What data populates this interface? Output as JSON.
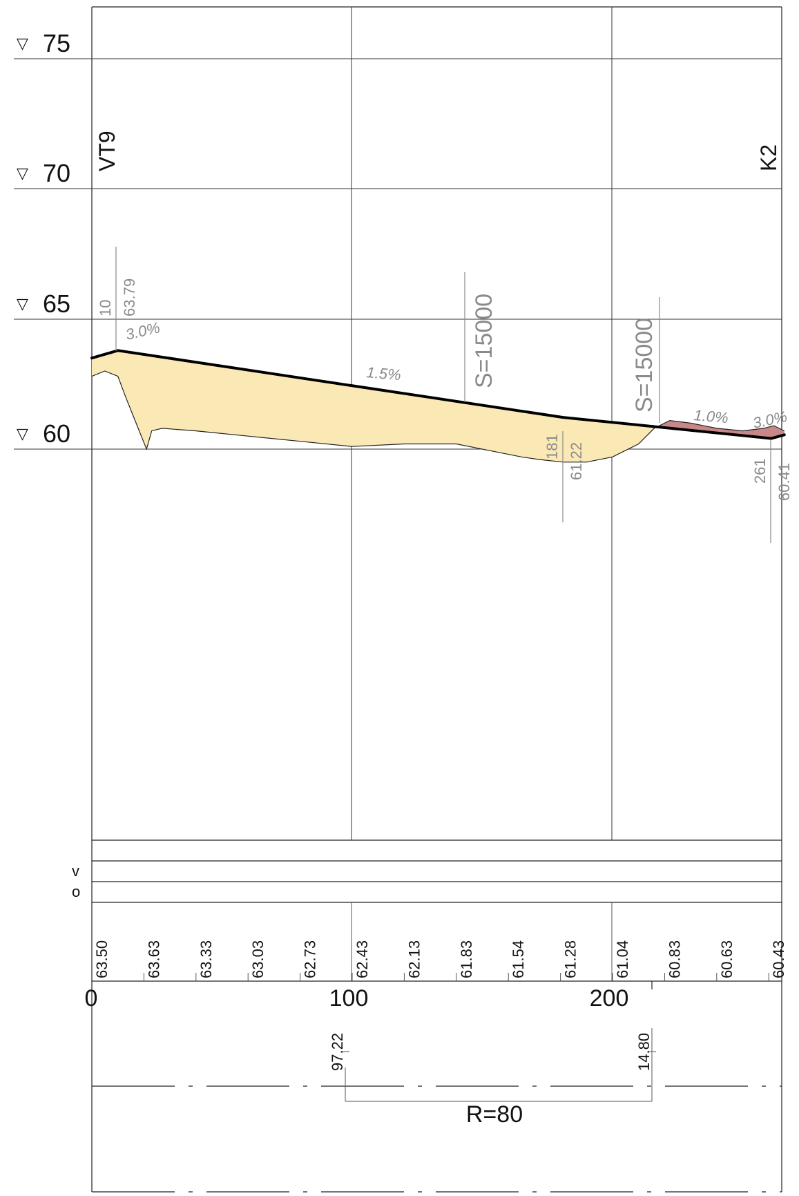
{
  "elevation_labels": [
    "75",
    "70",
    "65",
    "60"
  ],
  "elevation_marker_symbol": "▽",
  "stations": {
    "start": "0",
    "s100": "100",
    "s200": "200"
  },
  "point_labels": {
    "start": "VT9",
    "end": "K2"
  },
  "vertical_points": [
    {
      "station": "10",
      "elevation": "63.79"
    },
    {
      "station": "181",
      "elevation": "61.22"
    },
    {
      "station": "261",
      "elevation": "60.41"
    }
  ],
  "grade_labels": [
    "3.0%",
    "1.5%",
    "1.0%",
    "3.0%"
  ],
  "vertical_curves": [
    "S=15000",
    "S=15000"
  ],
  "table_row_labels": {
    "v": "v",
    "o": "o"
  },
  "grade_elevations": [
    "63.50",
    "63.63",
    "63.33",
    "63.03",
    "62.73",
    "62.43",
    "62.13",
    "61.83",
    "61.54",
    "61.28",
    "61.04",
    "60.83",
    "60.63",
    "60.43"
  ],
  "horizontal_curve": {
    "radius_label": "R=80",
    "start_value": "97.22",
    "end_value": "14.80"
  },
  "colors": {
    "cut_fill": "#fbe9b5",
    "fill_fill": "#c98888",
    "grade_line": "#000000",
    "annotation_grey": "#8a8a8a"
  },
  "chart_data": {
    "type": "line",
    "title": "",
    "xlabel": "",
    "ylabel": "",
    "xlim": [
      0,
      266
    ],
    "ylim": [
      45,
      77
    ],
    "series": [
      {
        "values_kind": "grade-line",
        "x": [
          0,
          10,
          181,
          261,
          266
        ],
        "y": [
          63.5,
          63.79,
          61.22,
          60.41,
          60.55
        ]
      },
      {
        "values_kind": "terrain",
        "x": [
          0,
          5,
          10,
          13,
          17,
          21,
          23,
          27,
          40,
          60,
          80,
          100,
          120,
          140,
          155,
          165,
          172,
          181,
          190,
          200,
          210,
          216,
          222,
          230,
          240,
          250,
          258,
          262,
          266
        ],
        "y": [
          62.8,
          63.0,
          62.8,
          62.0,
          61.0,
          60.0,
          60.7,
          60.8,
          60.7,
          60.5,
          60.3,
          60.1,
          60.2,
          60.2,
          59.9,
          59.7,
          59.6,
          59.5,
          59.5,
          59.7,
          60.2,
          60.8,
          61.1,
          61.0,
          60.8,
          60.7,
          60.8,
          60.9,
          60.7
        ]
      }
    ],
    "x_ticks": [
      0,
      100,
      200
    ],
    "y_ticks": [
      60,
      65,
      70,
      75
    ]
  }
}
